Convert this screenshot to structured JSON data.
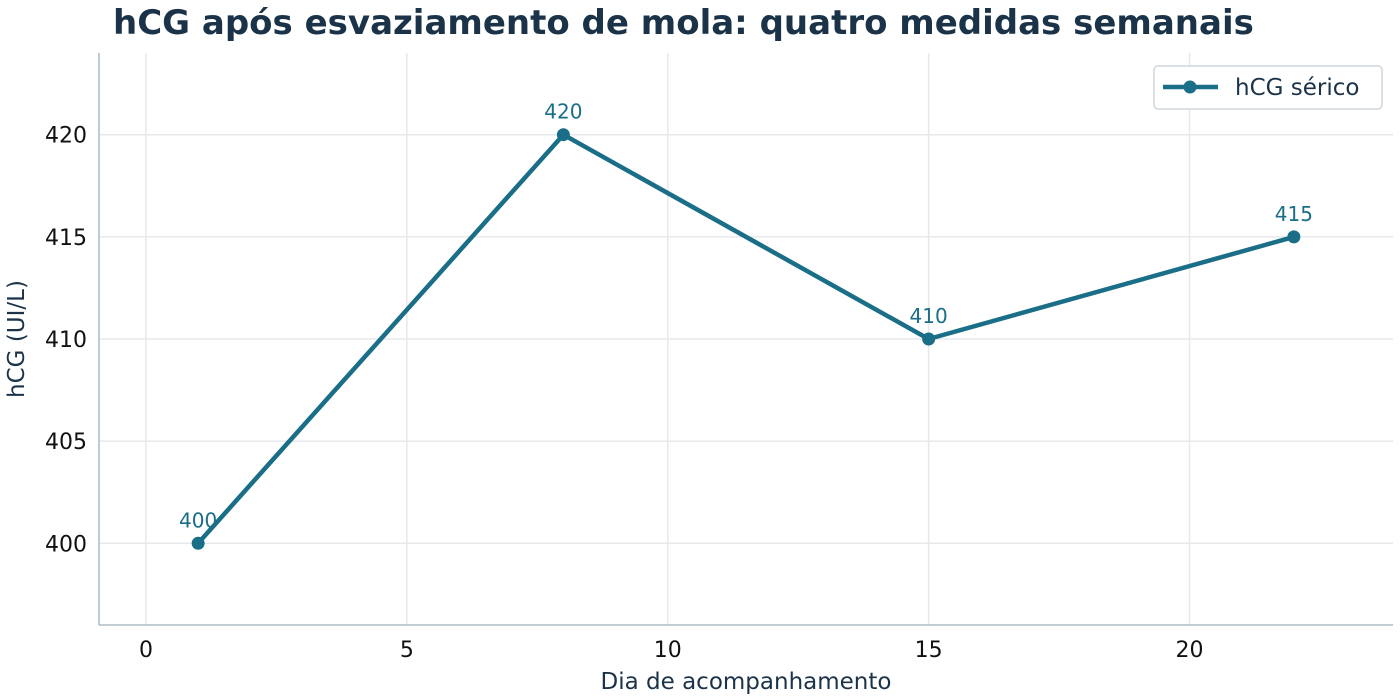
{
  "chart_data": {
    "type": "line",
    "title": "hCG após esvaziamento de mola: quatro medidas semanais",
    "xlabel": "Dia de acompanhamento",
    "ylabel": "hCG (UI/L)",
    "xlim": [
      -0.9,
      23.9
    ],
    "ylim": [
      396,
      424
    ],
    "xticks": [
      0,
      5,
      10,
      15,
      20
    ],
    "yticks": [
      400,
      405,
      410,
      415,
      420
    ],
    "grid": true,
    "legend_position": "top-right",
    "series": [
      {
        "name": "hCG sérico",
        "color": "#1a6e87",
        "x": [
          1,
          8,
          15,
          22
        ],
        "y": [
          400,
          420,
          410,
          415
        ],
        "labels": [
          "400",
          "420",
          "410",
          "415"
        ]
      }
    ]
  },
  "colors": {
    "title": "#1b3349",
    "axis_label": "#1b3349",
    "tick_label": "#111111",
    "grid": "#e6e9ec",
    "spine": "#b8c4cd"
  }
}
